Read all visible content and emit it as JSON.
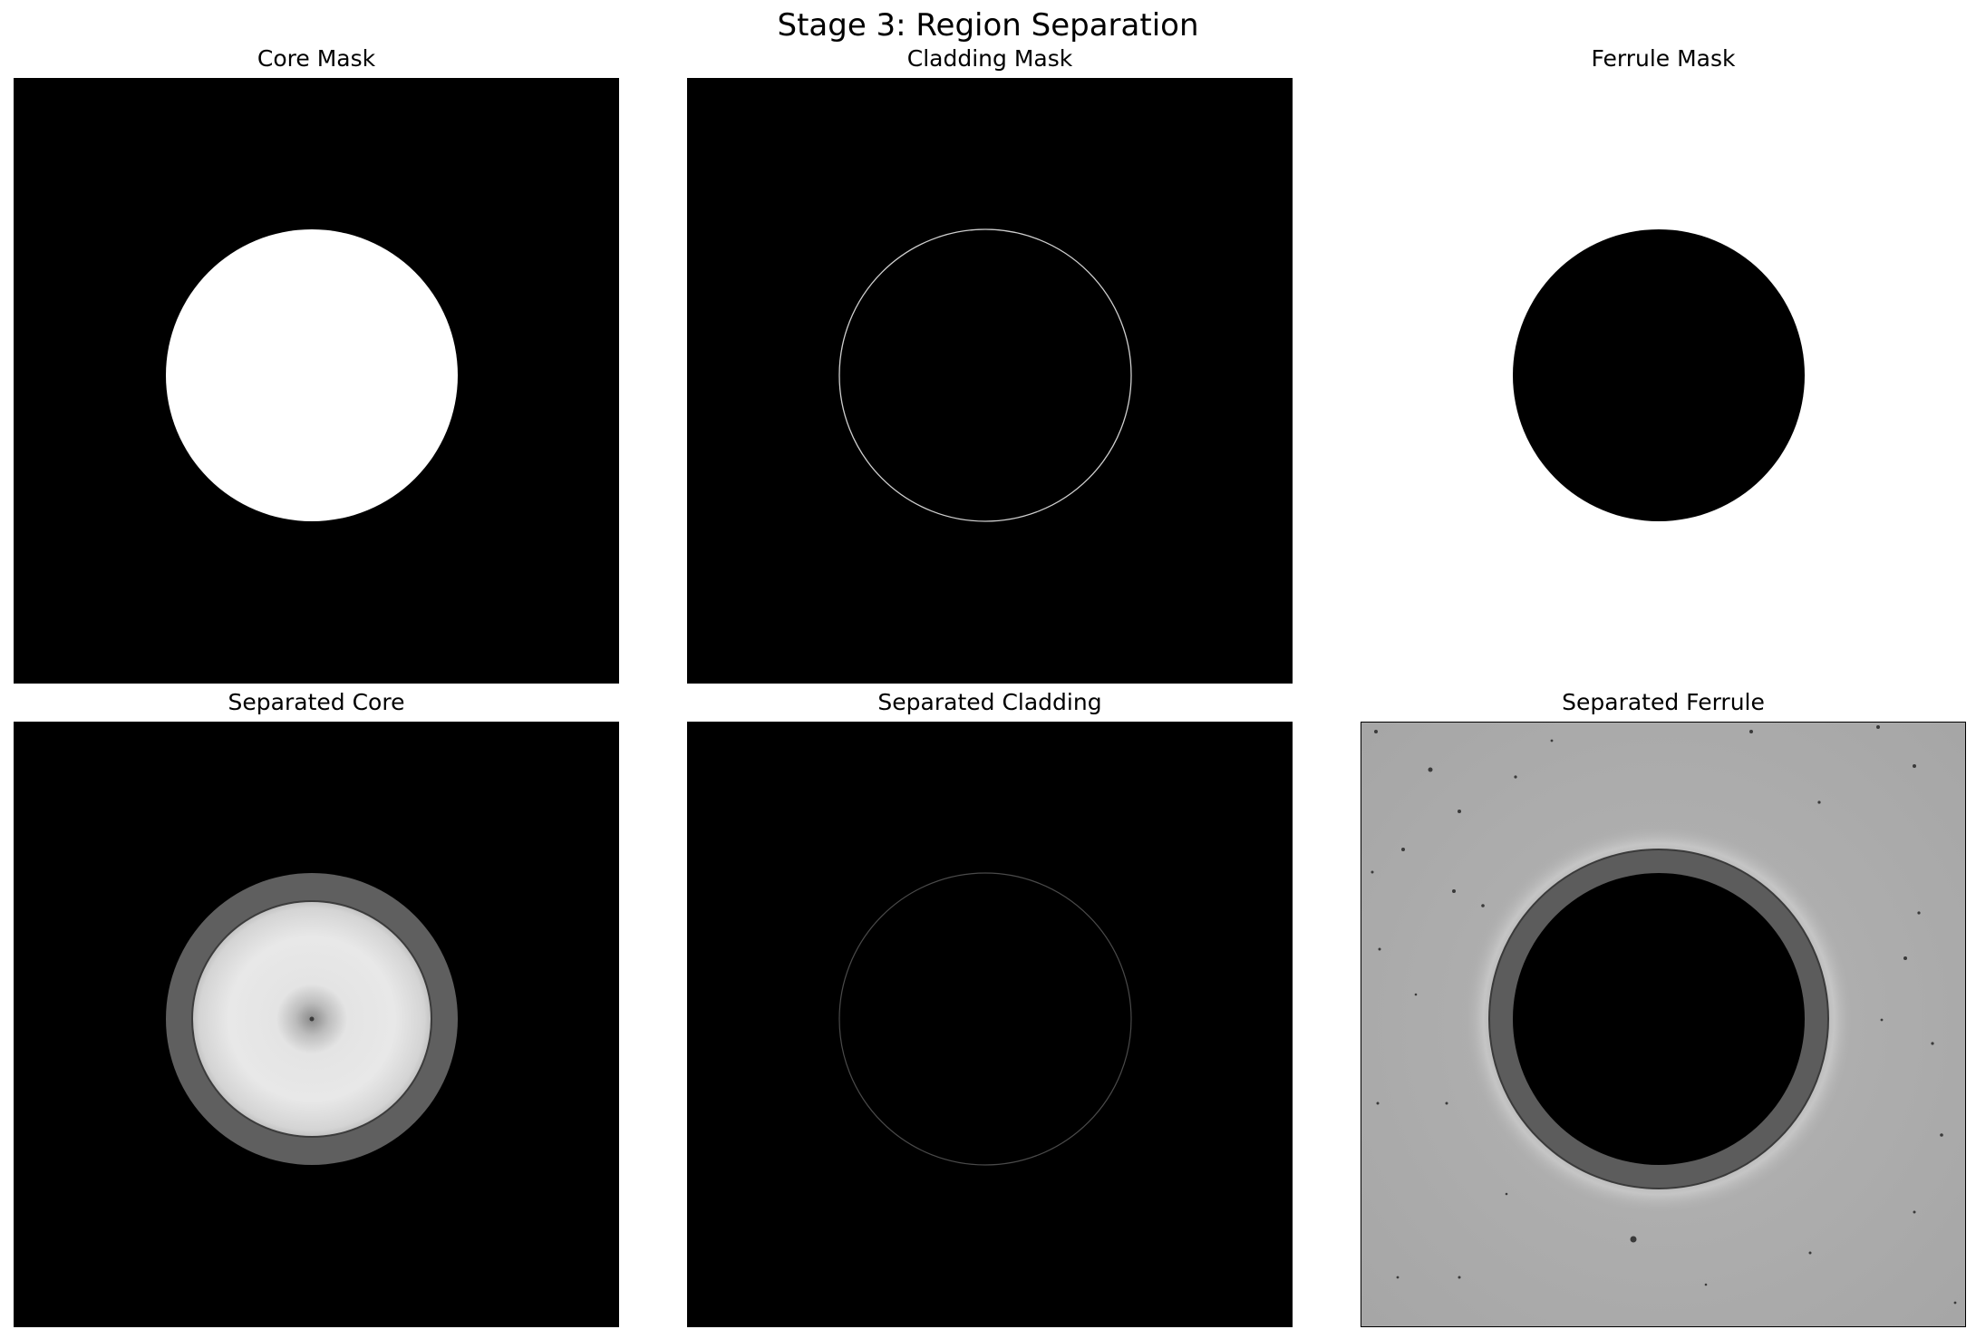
{
  "figure": {
    "title": "Stage 3: Region Separation"
  },
  "panels": [
    {
      "title": "Core Mask"
    },
    {
      "title": "Cladding Mask"
    },
    {
      "title": "Ferrule Mask"
    },
    {
      "title": "Separated Core"
    },
    {
      "title": "Separated Cladding"
    },
    {
      "title": "Separated Ferrule"
    }
  ]
}
